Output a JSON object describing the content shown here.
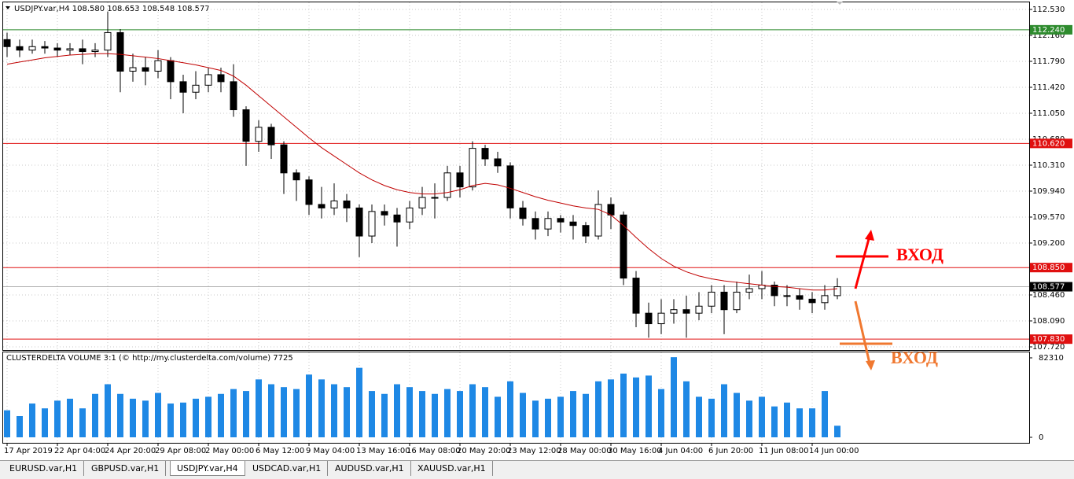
{
  "chart_data": [
    {
      "type": "candlestick",
      "title": "USDJPY.var,H4  108.580 108.653 108.548 108.577",
      "categories": [
        "17 Apr 2019",
        null,
        null,
        null,
        "22 Apr 04:00",
        null,
        null,
        null,
        "24 Apr 20:00",
        null,
        null,
        null,
        "29 Apr 08:00",
        null,
        null,
        null,
        "2 May 00:00",
        null,
        null,
        null,
        "6 May 12:00",
        null,
        null,
        null,
        "9 May 04:00",
        null,
        null,
        null,
        "13 May 16:00",
        null,
        null,
        null,
        "16 May 08:00",
        null,
        null,
        null,
        "20 May 20:00",
        null,
        null,
        null,
        "23 May 12:00",
        null,
        null,
        null,
        "28 May 00:00",
        null,
        null,
        null,
        "30 May 16:00",
        null,
        null,
        null,
        "4 Jun 04:00",
        null,
        null,
        null,
        "6 Jun 20:00",
        null,
        null,
        null,
        "11 Jun 08:00",
        null,
        null,
        null,
        "14 Jun 00:00",
        null,
        null
      ],
      "open": [
        112.1,
        112.0,
        111.95,
        112.0,
        111.98,
        111.95,
        111.97,
        111.93,
        111.95,
        112.2,
        111.65,
        111.7,
        111.65,
        111.8,
        111.5,
        111.35,
        111.45,
        111.6,
        111.5,
        111.1,
        110.65,
        110.85,
        110.6,
        110.2,
        110.1,
        109.75,
        109.7,
        109.8,
        109.7,
        109.3,
        109.65,
        109.6,
        109.5,
        109.7,
        109.85,
        109.85,
        110.2,
        110.0,
        110.55,
        110.4,
        110.3,
        109.7,
        109.55,
        109.4,
        109.55,
        109.5,
        109.45,
        109.3,
        109.75,
        109.6,
        108.7,
        108.2,
        108.05,
        108.2,
        108.25,
        108.2,
        108.3,
        108.5,
        108.25,
        108.5,
        108.55,
        108.6,
        108.45,
        108.45,
        108.4,
        108.35,
        108.45
      ],
      "high": [
        112.2,
        112.1,
        112.1,
        112.08,
        112.05,
        112.05,
        112.1,
        112.05,
        112.5,
        112.25,
        111.9,
        111.85,
        111.95,
        111.85,
        111.6,
        111.65,
        111.7,
        111.7,
        111.75,
        111.15,
        110.95,
        110.9,
        110.65,
        110.25,
        110.15,
        110.0,
        110.05,
        109.9,
        109.75,
        109.75,
        109.75,
        109.7,
        109.8,
        110.0,
        110.05,
        110.3,
        110.3,
        110.65,
        110.6,
        110.5,
        110.35,
        109.8,
        109.65,
        109.65,
        109.6,
        109.6,
        109.5,
        109.95,
        109.85,
        109.65,
        108.8,
        108.35,
        108.4,
        108.4,
        108.45,
        108.5,
        108.6,
        108.6,
        108.65,
        108.75,
        108.8,
        108.65,
        108.6,
        108.55,
        108.5,
        108.6,
        108.7
      ],
      "low": [
        111.85,
        111.85,
        111.9,
        111.9,
        111.85,
        111.88,
        111.75,
        111.85,
        111.85,
        111.35,
        111.5,
        111.45,
        111.55,
        111.25,
        111.05,
        111.25,
        111.35,
        111.35,
        111.0,
        110.3,
        110.5,
        110.4,
        109.9,
        109.8,
        109.6,
        109.55,
        109.6,
        109.5,
        109.0,
        109.2,
        109.45,
        109.15,
        109.4,
        109.6,
        109.55,
        109.8,
        109.85,
        109.95,
        110.3,
        110.2,
        109.55,
        109.45,
        109.25,
        109.3,
        109.35,
        109.25,
        109.2,
        109.25,
        109.4,
        108.6,
        108.0,
        107.85,
        107.9,
        108.05,
        107.85,
        108.1,
        108.2,
        107.9,
        108.2,
        108.4,
        108.4,
        108.3,
        108.3,
        108.25,
        108.2,
        108.25,
        108.4
      ],
      "close": [
        112.0,
        111.95,
        112.0,
        111.98,
        111.95,
        111.97,
        111.93,
        111.95,
        112.2,
        111.65,
        111.7,
        111.65,
        111.8,
        111.5,
        111.35,
        111.45,
        111.6,
        111.5,
        111.1,
        110.65,
        110.85,
        110.6,
        110.2,
        110.1,
        109.75,
        109.7,
        109.8,
        109.7,
        109.3,
        109.65,
        109.6,
        109.5,
        109.7,
        109.85,
        109.85,
        110.2,
        110.0,
        110.55,
        110.4,
        110.3,
        109.7,
        109.55,
        109.4,
        109.55,
        109.5,
        109.45,
        109.3,
        109.75,
        109.6,
        108.7,
        108.2,
        108.05,
        108.2,
        108.25,
        108.2,
        108.3,
        108.5,
        108.25,
        108.5,
        108.55,
        108.6,
        108.45,
        108.45,
        108.4,
        108.35,
        108.45,
        108.577
      ],
      "ma": {
        "color": "#c00000",
        "values": [
          111.75,
          111.78,
          111.81,
          111.84,
          111.86,
          111.88,
          111.89,
          111.9,
          111.9,
          111.89,
          111.87,
          111.85,
          111.83,
          111.8,
          111.77,
          111.74,
          111.7,
          111.66,
          111.58,
          111.45,
          111.3,
          111.15,
          111.0,
          110.85,
          110.7,
          110.56,
          110.44,
          110.32,
          110.2,
          110.1,
          110.02,
          109.96,
          109.92,
          109.9,
          109.9,
          109.92,
          109.96,
          110.02,
          110.05,
          110.03,
          109.98,
          109.92,
          109.86,
          109.81,
          109.77,
          109.73,
          109.7,
          109.68,
          109.6,
          109.45,
          109.28,
          109.12,
          108.98,
          108.87,
          108.79,
          108.73,
          108.69,
          108.66,
          108.64,
          108.62,
          108.6,
          108.58,
          108.57,
          108.55,
          108.53,
          108.53,
          108.55
        ]
      },
      "ylim": [
        107.675,
        112.631
      ],
      "yticks": [
        {
          "value": 107.72,
          "label": "107.720"
        },
        {
          "value": 108.09,
          "label": "108.090"
        },
        {
          "value": 108.46,
          "label": "108.460"
        },
        {
          "value": 109.2,
          "label": "109.200"
        },
        {
          "value": 109.57,
          "label": "109.570"
        },
        {
          "value": 109.94,
          "label": "109.940"
        },
        {
          "value": 110.31,
          "label": "110.310"
        },
        {
          "value": 110.68,
          "label": "110.680"
        },
        {
          "value": 111.05,
          "label": "111.050"
        },
        {
          "value": 111.42,
          "label": "111.420"
        },
        {
          "value": 111.79,
          "label": "111.790"
        },
        {
          "value": 112.16,
          "label": "112.160"
        },
        {
          "value": 112.53,
          "label": "112.530"
        }
      ],
      "grid": true,
      "levels": [
        {
          "value": 112.24,
          "label": "112.240",
          "color": "#2e8b2e"
        },
        {
          "value": 110.62,
          "label": "110.620",
          "color": "#e01010"
        },
        {
          "value": 108.85,
          "label": "108.850",
          "color": "#e01010"
        },
        {
          "value": 107.83,
          "label": "107.830",
          "color": "#e01010"
        }
      ],
      "current_price": 108.577,
      "annotations": [
        {
          "text": "ВХОД",
          "color": "#ff0000"
        },
        {
          "text": "ВХОД",
          "color": "#f07830"
        }
      ]
    },
    {
      "type": "bar",
      "title": "CLUSTERDELTA VOLUME 3:1 (© http://my.clusterdelta.com/volume) 7725",
      "values": [
        28000,
        22000,
        35000,
        30000,
        38000,
        40000,
        30000,
        45000,
        55000,
        45000,
        40000,
        38000,
        46000,
        35000,
        36000,
        40000,
        42000,
        45000,
        50000,
        48000,
        60000,
        55000,
        52000,
        50000,
        65000,
        60000,
        55000,
        52000,
        72000,
        48000,
        45000,
        55000,
        52000,
        48000,
        45000,
        50000,
        48000,
        55000,
        52000,
        42000,
        58000,
        46000,
        38000,
        40000,
        42000,
        48000,
        45000,
        58000,
        60000,
        66000,
        62000,
        64000,
        50000,
        83000,
        58000,
        42000,
        40000,
        55000,
        46000,
        38000,
        42000,
        32000,
        36000,
        30000,
        30000,
        48000,
        12000
      ],
      "color": "#1e88e5",
      "ylim": [
        0,
        88000
      ],
      "yticks": [
        0,
        82310
      ]
    }
  ],
  "tabs": [
    "EURUSD.var,H1",
    "GBPUSD.var,H1",
    "USDJPY.var,H4",
    "USDCAD.var,H1",
    "AUDUSD.var,H1",
    "XAUUSD.var,H1"
  ],
  "active_tab": 2
}
